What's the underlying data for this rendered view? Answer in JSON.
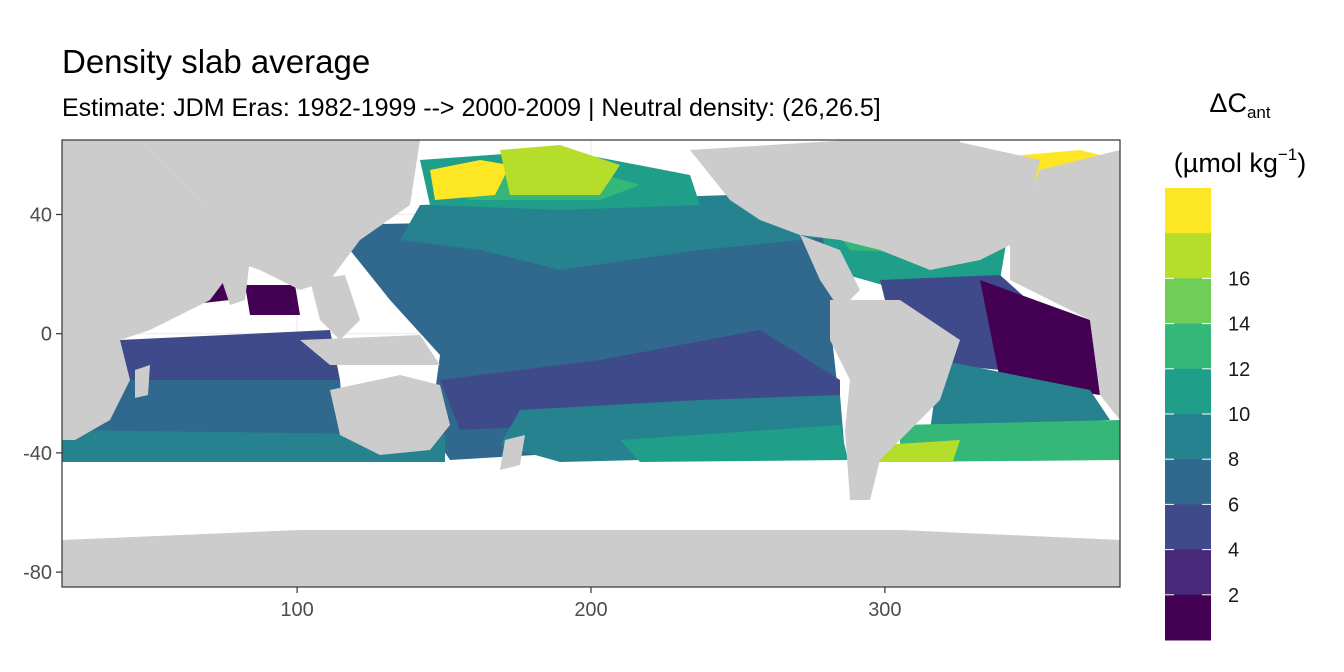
{
  "chart_data": {
    "type": "heatmap",
    "title": "Density slab average",
    "subtitle": "Estimate: JDM Eras: 1982-1999 --> 2000-2009 | Neutral density: (26,26.5]",
    "x_ticks": [
      100,
      200,
      300
    ],
    "y_ticks": [
      40,
      0,
      -40,
      -80
    ],
    "xlim": [
      20,
      380
    ],
    "ylim": [
      -85,
      65
    ],
    "grid": true,
    "colors": {
      "land": "#cccccc",
      "no_data": "#ffffff",
      "panel_border": "#333333",
      "grid": "#ebebeb"
    },
    "legend": {
      "title_line1": "ΔC",
      "title_sub": "ant",
      "title_line2_pre": "(µmol kg",
      "title_sup": "−1",
      "title_line2_post": ")",
      "position": "right",
      "bins": [
        {
          "upper": 2,
          "color": "#440154"
        },
        {
          "upper": 4,
          "color": "#482878"
        },
        {
          "upper": 6,
          "color": "#3e4a89"
        },
        {
          "upper": 8,
          "color": "#31688e"
        },
        {
          "upper": 10,
          "color": "#26828e"
        },
        {
          "upper": 12,
          "color": "#1f9e89"
        },
        {
          "upper": 14,
          "color": "#35b779"
        },
        {
          "upper": 16,
          "color": "#6ece58"
        },
        {
          "upper": 18,
          "color": "#b5de2b"
        },
        {
          "upper": 20,
          "color": "#fde725"
        }
      ],
      "labels": [
        2,
        4,
        6,
        8,
        10,
        12,
        14,
        16
      ]
    }
  }
}
